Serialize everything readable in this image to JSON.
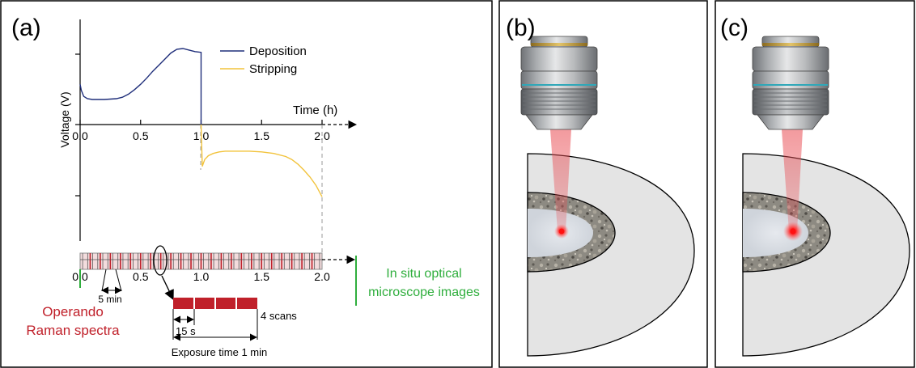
{
  "panels": {
    "a": {
      "label": "(a)"
    },
    "b": {
      "label": "(b)"
    },
    "c": {
      "label": "(c)"
    }
  },
  "colors": {
    "deposition": "#1f2e7a",
    "stripping": "#f2c33c",
    "raman": "#c0202a",
    "optical": "#2fae3d",
    "laser": "#e8484f"
  },
  "chart_data": {
    "type": "line",
    "ylabel": "Voltage (V)",
    "xlabel": "Time (h)",
    "xlim": [
      0,
      2.0
    ],
    "xticks": [
      "0.0",
      "0.5",
      "1.0",
      "1.5",
      "2.0"
    ],
    "series": [
      {
        "name": "Deposition",
        "x": [
          0,
          0.01,
          0.03,
          0.06,
          0.1,
          0.2,
          0.3,
          0.35,
          0.4,
          0.45,
          0.5,
          0.55,
          0.6,
          0.65,
          0.7,
          0.75,
          0.8,
          0.85,
          0.9,
          0.95,
          1.0,
          1.0
        ],
        "y": [
          0.53,
          0.45,
          0.37,
          0.34,
          0.33,
          0.33,
          0.34,
          0.36,
          0.4,
          0.46,
          0.53,
          0.61,
          0.7,
          0.78,
          0.86,
          0.94,
          0.99,
          1.0,
          0.98,
          0.96,
          0.95,
          0.0
        ]
      },
      {
        "name": "Stripping",
        "x": [
          1.0,
          1.01,
          1.03,
          1.06,
          1.1,
          1.15,
          1.2,
          1.3,
          1.4,
          1.5,
          1.6,
          1.7,
          1.75,
          1.8,
          1.85,
          1.9,
          1.95,
          2.0
        ],
        "y": [
          0.0,
          -0.55,
          -0.46,
          -0.41,
          -0.38,
          -0.36,
          -0.35,
          -0.35,
          -0.35,
          -0.36,
          -0.38,
          -0.42,
          -0.46,
          -0.52,
          -0.6,
          -0.69,
          -0.8,
          -0.95
        ]
      }
    ]
  },
  "timeline": {
    "ticks": [
      "0.0",
      "0.5",
      "1.0",
      "1.5",
      "2.0"
    ],
    "interval_label": "5 min",
    "raman_label_line1": "Operando",
    "raman_label_line2": "Raman spectra",
    "optical_label_line1": "In situ optical",
    "optical_label_line2": "microscope images",
    "scan_interval_label": "15 s",
    "scans_label": "4 scans",
    "exposure_label": "Exposure time 1 min"
  }
}
